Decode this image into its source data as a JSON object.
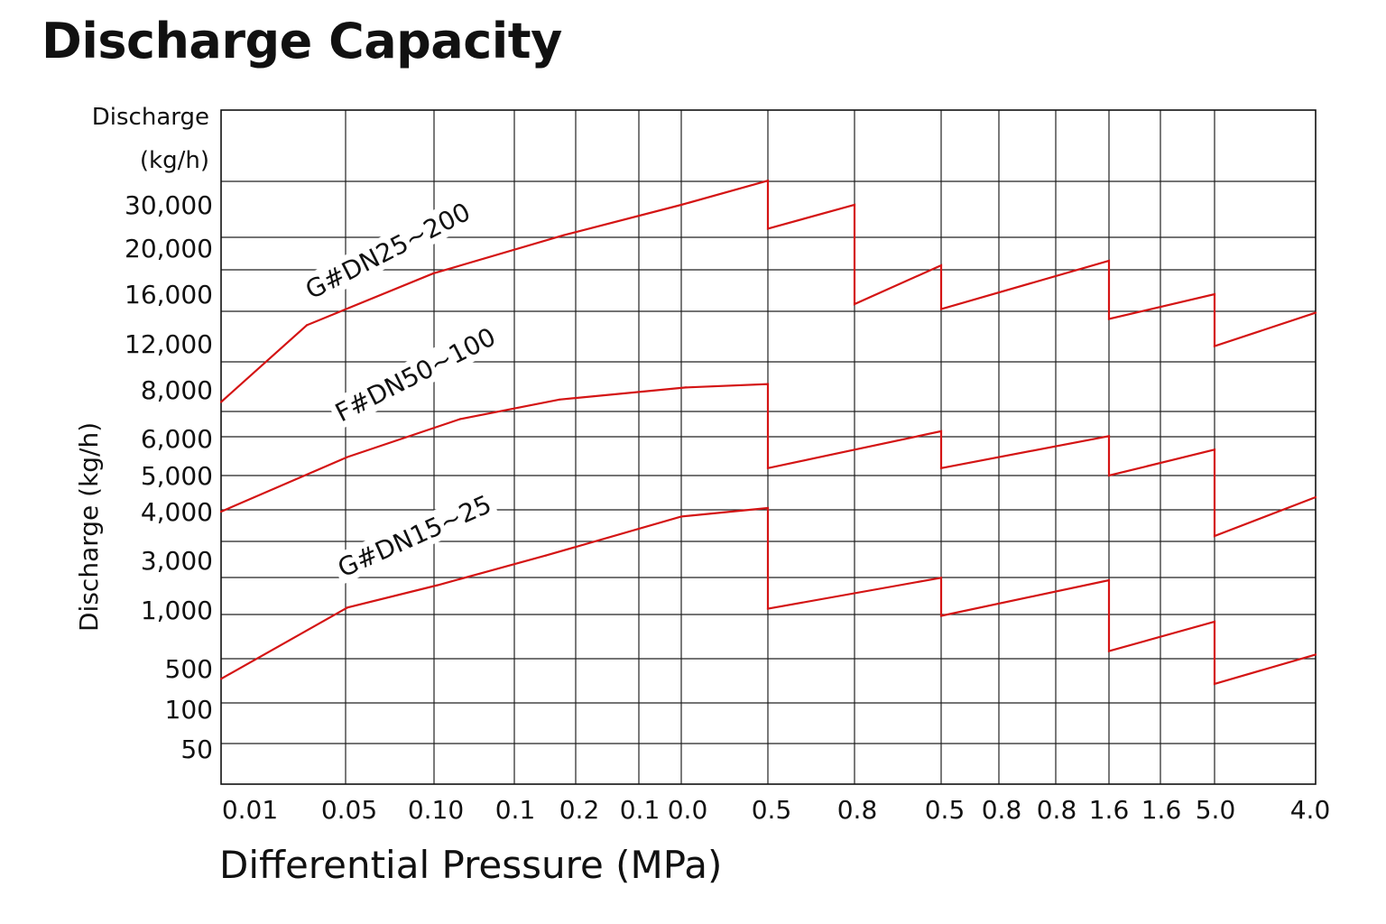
{
  "chart_data": {
    "type": "line",
    "title": "Discharge Capacity",
    "xlabel": "Differential Pressure (MPa)",
    "ylabel": "Discharge (kg/h)",
    "y_unit_label": [
      "Discharge",
      "(kg/h)"
    ],
    "x_tick_labels": [
      "0.01",
      "0.05",
      "0.10",
      "0.1",
      "0.2",
      "0.1",
      "0.0",
      "0.5",
      "0.8",
      "0.5",
      "0.8",
      "0.8",
      "1.6",
      "1.6",
      "5.0",
      "4.0"
    ],
    "y_tick_labels": [
      "30,000",
      "20,000",
      "16,000",
      "12,000",
      "8,000",
      "6,000",
      "5,000",
      "4,000",
      "3,000",
      "1,000",
      "500",
      "100",
      "50"
    ],
    "grid": true,
    "series": [
      {
        "name": "G#DN25~200",
        "points": [
          {
            "x": 0.01,
            "y": 7500
          },
          {
            "x": 0.05,
            "y": 13500
          },
          {
            "x": 0.1,
            "y": 17800
          },
          {
            "x": 0.2,
            "y": 23000
          },
          {
            "x": 0.0,
            "y": 30000
          },
          {
            "x": 0.5,
            "y": 34000
          },
          {
            "x": 0.5,
            "y": 24500
          },
          {
            "x": 0.8,
            "y": 30000
          },
          {
            "x": 0.8,
            "y": 15200
          },
          {
            "x": 0.5,
            "y": 18500
          },
          {
            "x": 0.5,
            "y": 14800
          },
          {
            "x": 1.6,
            "y": 18900
          },
          {
            "x": 1.6,
            "y": 14000
          },
          {
            "x": 5.0,
            "y": 16000
          },
          {
            "x": 5.0,
            "y": 11800
          },
          {
            "x": 4.0,
            "y": 14500
          }
        ]
      },
      {
        "name": "F#DN50~100",
        "points": [
          {
            "x": 0.01,
            "y": 4000
          },
          {
            "x": 0.05,
            "y": 5500
          },
          {
            "x": 0.1,
            "y": 6800
          },
          {
            "x": 0.2,
            "y": 7600
          },
          {
            "x": 0.0,
            "y": 8200
          },
          {
            "x": 0.5,
            "y": 8500
          },
          {
            "x": 0.5,
            "y": 5200
          },
          {
            "x": 0.5,
            "y": 6300
          },
          {
            "x": 0.5,
            "y": 5200
          },
          {
            "x": 1.6,
            "y": 6100
          },
          {
            "x": 1.6,
            "y": 5000
          },
          {
            "x": 5.0,
            "y": 5700
          },
          {
            "x": 5.0,
            "y": 3500
          },
          {
            "x": 4.0,
            "y": 4400
          }
        ]
      },
      {
        "name": "G#DN15~25",
        "points": [
          {
            "x": 0.01,
            "y": 400
          },
          {
            "x": 0.05,
            "y": 1100
          },
          {
            "x": 0.1,
            "y": 2000
          },
          {
            "x": 0.2,
            "y": 3100
          },
          {
            "x": 0.0,
            "y": 3900
          },
          {
            "x": 0.5,
            "y": 4100
          },
          {
            "x": 0.5,
            "y": 1050
          },
          {
            "x": 0.5,
            "y": 2300
          },
          {
            "x": 0.5,
            "y": 950
          },
          {
            "x": 1.6,
            "y": 2200
          },
          {
            "x": 1.6,
            "y": 650
          },
          {
            "x": 5.0,
            "y": 900
          },
          {
            "x": 5.0,
            "y": 350
          },
          {
            "x": 4.0,
            "y": 620
          }
        ]
      }
    ]
  }
}
